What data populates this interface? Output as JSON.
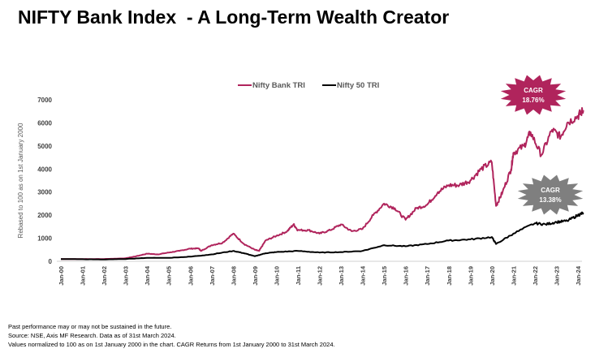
{
  "title": "NIFTY Bank Index  - A Long-Term Wealth Creator",
  "chart_data": {
    "type": "line",
    "ylabel": "Rebased to 100 as on 1st January 2000",
    "ylim": [
      0,
      7000
    ],
    "yticks": [
      0,
      1000,
      2000,
      3000,
      4000,
      5000,
      6000,
      7000
    ],
    "xticks": [
      "Jan-00",
      "Jan-01",
      "Jan-02",
      "Jan-03",
      "Jan-04",
      "Jan-05",
      "Jan-06",
      "Jan-07",
      "Jan-08",
      "Jan-09",
      "Jan-10",
      "Jan-11",
      "Jan-12",
      "Jan-13",
      "Jan-14",
      "Jan-15",
      "Jan-16",
      "Jan-17",
      "Jan-18",
      "Jan-19",
      "Jan-20",
      "Jan-21",
      "Jan-22",
      "Jan-23",
      "Jan-24"
    ],
    "legend_position": "top",
    "grid": false,
    "series": [
      {
        "name": "Nifty Bank TRI",
        "color": "#b0245c",
        "x": [
          2000,
          2001,
          2002,
          2003,
          2003.5,
          2004,
          2004.5,
          2005,
          2005.5,
          2006,
          2006.4,
          2006.5,
          2007,
          2007.5,
          2008,
          2008.5,
          2009,
          2009.2,
          2009.5,
          2010,
          2010.5,
          2010.8,
          2011,
          2011.5,
          2012,
          2012.5,
          2013,
          2013.5,
          2014,
          2014.5,
          2015,
          2015.5,
          2016,
          2016.5,
          2017,
          2017.5,
          2018,
          2018.5,
          2019,
          2019.5,
          2020,
          2020.2,
          2020.5,
          2020.9,
          2021,
          2021.5,
          2021.8,
          2022.3,
          2022.8,
          2023.2,
          2023.5,
          2024,
          2024.25
        ],
        "values": [
          100,
          100,
          100,
          130,
          220,
          330,
          300,
          380,
          450,
          550,
          560,
          450,
          700,
          800,
          1200,
          750,
          500,
          450,
          900,
          1100,
          1300,
          1600,
          1350,
          1350,
          1200,
          1350,
          1600,
          1300,
          1400,
          2000,
          2500,
          2300,
          1800,
          2300,
          2450,
          3000,
          3300,
          3300,
          3500,
          4000,
          4300,
          2400,
          3000,
          4000,
          4700,
          5000,
          5600,
          4600,
          5700,
          5400,
          6000,
          6300,
          6550
        ]
      },
      {
        "name": "Nifty 50 TRI",
        "color": "#000000",
        "x": [
          2000,
          2001,
          2002,
          2003,
          2004,
          2005,
          2006,
          2007,
          2008,
          2008.5,
          2009,
          2009.5,
          2010,
          2011,
          2012,
          2013,
          2014,
          2015,
          2016,
          2017,
          2018,
          2019,
          2020,
          2020.2,
          2021,
          2022,
          2022.5,
          2023,
          2023.5,
          2024,
          2024.25
        ],
        "values": [
          100,
          90,
          80,
          100,
          150,
          150,
          200,
          300,
          450,
          350,
          220,
          350,
          400,
          450,
          380,
          400,
          450,
          700,
          650,
          750,
          900,
          950,
          1050,
          750,
          1200,
          1650,
          1600,
          1700,
          1750,
          2000,
          2100
        ]
      }
    ],
    "annotations": [
      {
        "label": "CAGR",
        "value": "18.76%",
        "color": "#b0245c"
      },
      {
        "label": "CAGR",
        "value": "13.38%",
        "color": "#7f7f7f"
      }
    ]
  },
  "notes": [
    "Past performance may or may not be sustained in the future.",
    "Source: NSE, Axis MF Research. Data as of 31st March 2024.",
    "Values normalized to 100 as on 1st January 2000 in the chart. CAGR Returns from 1st January 2000 to 31st March 2024."
  ]
}
